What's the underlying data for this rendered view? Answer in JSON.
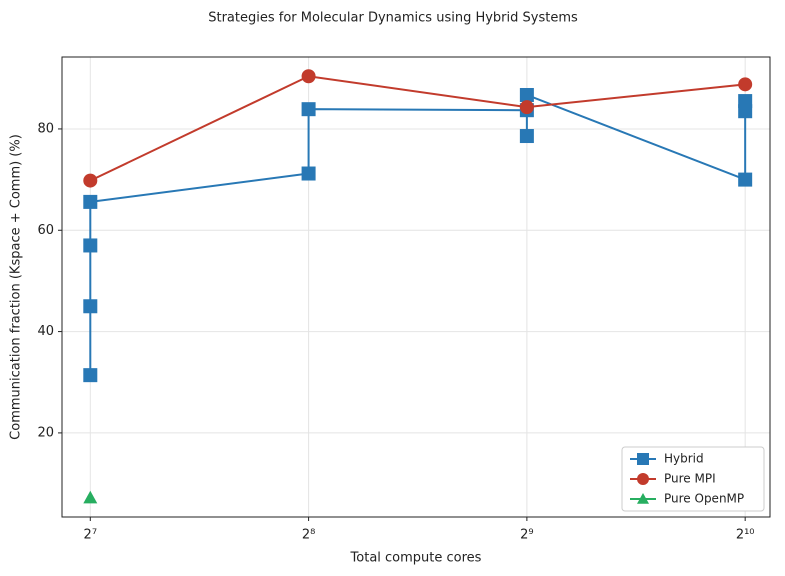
{
  "chart_data": {
    "type": "line",
    "title": "Strategies for Molecular Dynamics using Hybrid Systems",
    "x_label": "Total compute cores",
    "y_label": "Communication fraction (Kspace + Comm) (%)",
    "xscale": "log2",
    "grid": true,
    "legend": "lower right",
    "xlim": [
      117,
      1108
    ],
    "ylim": [
      3.4,
      94.2
    ],
    "xticks": [
      {
        "value": 128,
        "label": "2⁷"
      },
      {
        "value": 256,
        "label": "2⁸"
      },
      {
        "value": 512,
        "label": "2⁹"
      },
      {
        "value": 1024,
        "label": "2¹⁰"
      }
    ],
    "yticks": [
      20,
      40,
      60,
      80
    ],
    "series": [
      {
        "name": "Hybrid",
        "color": "#2878b5",
        "marker": "square",
        "x": [
          128,
          128,
          128,
          128,
          256,
          256,
          512,
          512,
          512,
          1024,
          1024,
          1024
        ],
        "values": [
          31.4,
          45,
          57,
          65.6,
          71.2,
          83.9,
          83.7,
          78.6,
          86.7,
          70,
          83.5,
          85.5
        ]
      },
      {
        "name": "Pure MPI",
        "color": "#c23b2c",
        "marker": "circle",
        "x": [
          128,
          256,
          512,
          1024
        ],
        "values": [
          69.8,
          90.4,
          84.3,
          88.8
        ]
      },
      {
        "name": "Pure OpenMP",
        "color": "#27ae60",
        "marker": "triangle",
        "x": [
          128
        ],
        "values": [
          7.2
        ]
      }
    ]
  }
}
